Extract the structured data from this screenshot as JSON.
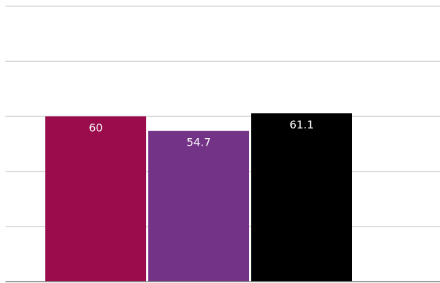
{
  "chart_data": {
    "type": "bar",
    "categories": [
      "",
      "",
      ""
    ],
    "values": [
      60,
      54.7,
      61.1
    ],
    "colors": [
      "#9b0c4c",
      "#733387",
      "#000000"
    ],
    "value_labels": [
      "60",
      "54.7",
      "61.1"
    ],
    "ylim": [
      0,
      100
    ],
    "grid": true,
    "legend": "none",
    "title": "",
    "xlabel": "",
    "ylabel": ""
  }
}
